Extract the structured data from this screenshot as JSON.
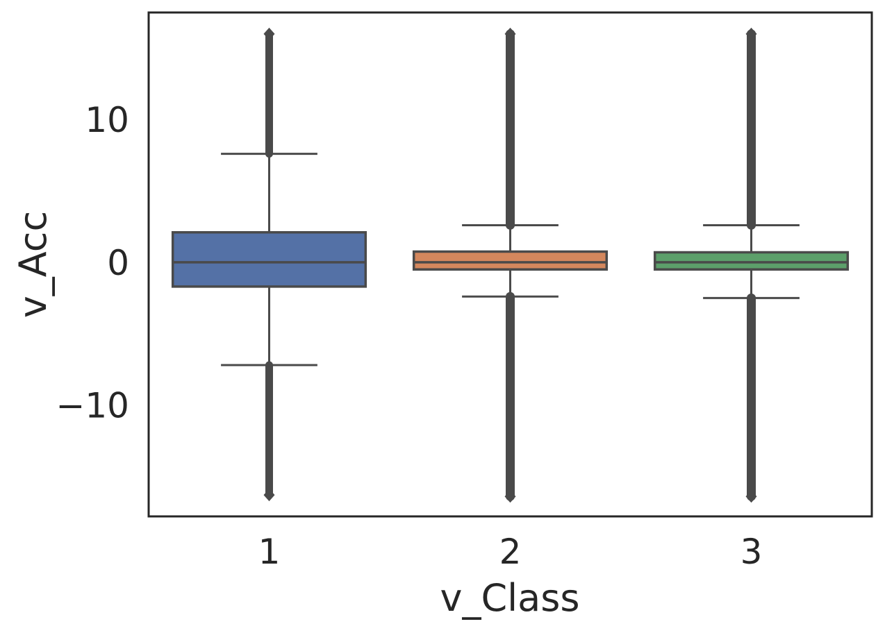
{
  "chart_data": {
    "type": "box",
    "xlabel": "v_Class",
    "ylabel": "v_Acc",
    "ylim": [
      -17.8,
      17.5
    ],
    "yticks": [
      -10,
      0,
      10
    ],
    "ytick_labels": [
      "−10",
      "0",
      "10"
    ],
    "grid": false,
    "categories": [
      "1",
      "2",
      "3"
    ],
    "boxes": [
      {
        "category": "1",
        "color": "#5471a6",
        "q1": -1.7,
        "median": 0.0,
        "q3": 2.1,
        "whisker_low": -7.2,
        "whisker_high": 7.6,
        "outlier_min": -16.3,
        "outlier_max": 16.0
      },
      {
        "category": "2",
        "color": "#d4875d",
        "q1": -0.5,
        "median": 0.0,
        "q3": 0.75,
        "whisker_low": -2.4,
        "whisker_high": 2.6,
        "outlier_min": -16.4,
        "outlier_max": 16.0
      },
      {
        "category": "3",
        "color": "#5c9f6a",
        "q1": -0.5,
        "median": 0.0,
        "q3": 0.7,
        "whisker_low": -2.5,
        "whisker_high": 2.6,
        "outlier_min": -16.4,
        "outlier_max": 16.0
      }
    ]
  }
}
